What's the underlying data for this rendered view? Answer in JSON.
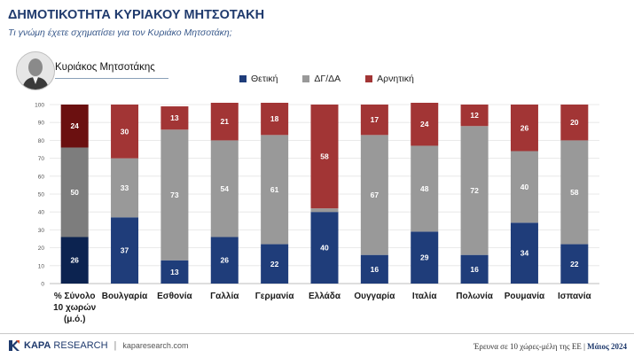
{
  "header": {
    "title": "ΔΗΜΟΤΙΚΟΤΗΤΑ ΚΥΡΙΑΚΟΥ ΜΗΤΣΟΤΑΚΗ",
    "subtitle": "Τι γνώμη έχετε σχηματίσει για τον Κυριάκο Μητσοτάκη;",
    "person_name": "Κυριάκος Μητσοτάκης"
  },
  "colors": {
    "positive": "#1f3d7a",
    "neutral": "#999999",
    "negative": "#a23535",
    "avg_positive": "#0c2350",
    "avg_neutral": "#7d7d7d",
    "avg_negative": "#6b1010"
  },
  "chart_data": {
    "type": "bar",
    "stacked": true,
    "categories": [
      "% Σύνολο 10 χωρών (μ.ό.)",
      "Βουλγαρία",
      "Εσθονία",
      "Γαλλία",
      "Γερμανία",
      "Ελλάδα",
      "Ουγγαρία",
      "Ιταλία",
      "Πολωνία",
      "Ρουμανία",
      "Ισπανία"
    ],
    "series": [
      {
        "name": "Θετική",
        "values": [
          26,
          37,
          13,
          26,
          22,
          40,
          16,
          29,
          16,
          34,
          22
        ]
      },
      {
        "name": "ΔΓ/ΔΑ",
        "values": [
          50,
          33,
          73,
          54,
          61,
          2,
          67,
          48,
          72,
          40,
          58
        ]
      },
      {
        "name": "Αρνητική",
        "values": [
          24,
          30,
          13,
          21,
          18,
          58,
          17,
          24,
          12,
          26,
          20
        ]
      }
    ],
    "ylim": [
      0,
      100
    ],
    "yticks": [
      0,
      10,
      20,
      30,
      40,
      50,
      60,
      70,
      80,
      90,
      100
    ],
    "grid": true,
    "legend": "top"
  },
  "footer": {
    "brand_bold": "KAPA",
    "brand_rest": "RESEARCH",
    "website": "kaparesearch.com",
    "source_text": "Έρευνα σε 10 χώρες-μέλη της ΕΕ",
    "date": "Μάιος 2024"
  }
}
